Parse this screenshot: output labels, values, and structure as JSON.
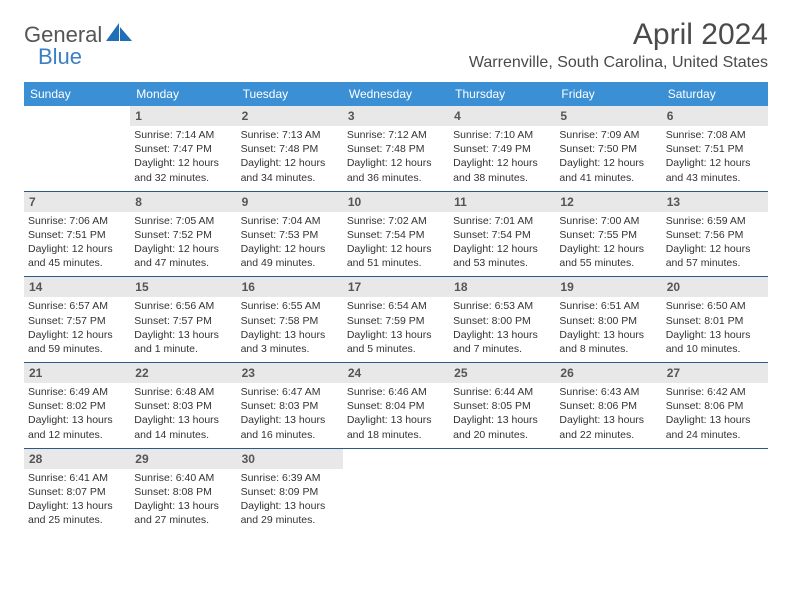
{
  "logo": {
    "word1": "General",
    "word2": "Blue"
  },
  "title": "April 2024",
  "location": "Warrenville, South Carolina, United States",
  "dayHeaders": [
    "Sunday",
    "Monday",
    "Tuesday",
    "Wednesday",
    "Thursday",
    "Friday",
    "Saturday"
  ],
  "colors": {
    "headerBg": "#3b8fd4",
    "rowBorder": "#2a5a8a",
    "dayBar": "#e8e8e8",
    "logoBlue": "#1e6fb8"
  },
  "weeks": [
    [
      null,
      {
        "n": "1",
        "sr": "7:14 AM",
        "ss": "7:47 PM",
        "dl": "12 hours and 32 minutes."
      },
      {
        "n": "2",
        "sr": "7:13 AM",
        "ss": "7:48 PM",
        "dl": "12 hours and 34 minutes."
      },
      {
        "n": "3",
        "sr": "7:12 AM",
        "ss": "7:48 PM",
        "dl": "12 hours and 36 minutes."
      },
      {
        "n": "4",
        "sr": "7:10 AM",
        "ss": "7:49 PM",
        "dl": "12 hours and 38 minutes."
      },
      {
        "n": "5",
        "sr": "7:09 AM",
        "ss": "7:50 PM",
        "dl": "12 hours and 41 minutes."
      },
      {
        "n": "6",
        "sr": "7:08 AM",
        "ss": "7:51 PM",
        "dl": "12 hours and 43 minutes."
      }
    ],
    [
      {
        "n": "7",
        "sr": "7:06 AM",
        "ss": "7:51 PM",
        "dl": "12 hours and 45 minutes."
      },
      {
        "n": "8",
        "sr": "7:05 AM",
        "ss": "7:52 PM",
        "dl": "12 hours and 47 minutes."
      },
      {
        "n": "9",
        "sr": "7:04 AM",
        "ss": "7:53 PM",
        "dl": "12 hours and 49 minutes."
      },
      {
        "n": "10",
        "sr": "7:02 AM",
        "ss": "7:54 PM",
        "dl": "12 hours and 51 minutes."
      },
      {
        "n": "11",
        "sr": "7:01 AM",
        "ss": "7:54 PM",
        "dl": "12 hours and 53 minutes."
      },
      {
        "n": "12",
        "sr": "7:00 AM",
        "ss": "7:55 PM",
        "dl": "12 hours and 55 minutes."
      },
      {
        "n": "13",
        "sr": "6:59 AM",
        "ss": "7:56 PM",
        "dl": "12 hours and 57 minutes."
      }
    ],
    [
      {
        "n": "14",
        "sr": "6:57 AM",
        "ss": "7:57 PM",
        "dl": "12 hours and 59 minutes."
      },
      {
        "n": "15",
        "sr": "6:56 AM",
        "ss": "7:57 PM",
        "dl": "13 hours and 1 minute."
      },
      {
        "n": "16",
        "sr": "6:55 AM",
        "ss": "7:58 PM",
        "dl": "13 hours and 3 minutes."
      },
      {
        "n": "17",
        "sr": "6:54 AM",
        "ss": "7:59 PM",
        "dl": "13 hours and 5 minutes."
      },
      {
        "n": "18",
        "sr": "6:53 AM",
        "ss": "8:00 PM",
        "dl": "13 hours and 7 minutes."
      },
      {
        "n": "19",
        "sr": "6:51 AM",
        "ss": "8:00 PM",
        "dl": "13 hours and 8 minutes."
      },
      {
        "n": "20",
        "sr": "6:50 AM",
        "ss": "8:01 PM",
        "dl": "13 hours and 10 minutes."
      }
    ],
    [
      {
        "n": "21",
        "sr": "6:49 AM",
        "ss": "8:02 PM",
        "dl": "13 hours and 12 minutes."
      },
      {
        "n": "22",
        "sr": "6:48 AM",
        "ss": "8:03 PM",
        "dl": "13 hours and 14 minutes."
      },
      {
        "n": "23",
        "sr": "6:47 AM",
        "ss": "8:03 PM",
        "dl": "13 hours and 16 minutes."
      },
      {
        "n": "24",
        "sr": "6:46 AM",
        "ss": "8:04 PM",
        "dl": "13 hours and 18 minutes."
      },
      {
        "n": "25",
        "sr": "6:44 AM",
        "ss": "8:05 PM",
        "dl": "13 hours and 20 minutes."
      },
      {
        "n": "26",
        "sr": "6:43 AM",
        "ss": "8:06 PM",
        "dl": "13 hours and 22 minutes."
      },
      {
        "n": "27",
        "sr": "6:42 AM",
        "ss": "8:06 PM",
        "dl": "13 hours and 24 minutes."
      }
    ],
    [
      {
        "n": "28",
        "sr": "6:41 AM",
        "ss": "8:07 PM",
        "dl": "13 hours and 25 minutes."
      },
      {
        "n": "29",
        "sr": "6:40 AM",
        "ss": "8:08 PM",
        "dl": "13 hours and 27 minutes."
      },
      {
        "n": "30",
        "sr": "6:39 AM",
        "ss": "8:09 PM",
        "dl": "13 hours and 29 minutes."
      },
      null,
      null,
      null,
      null
    ]
  ],
  "labels": {
    "sunrise": "Sunrise: ",
    "sunset": "Sunset: ",
    "daylight": "Daylight: "
  }
}
